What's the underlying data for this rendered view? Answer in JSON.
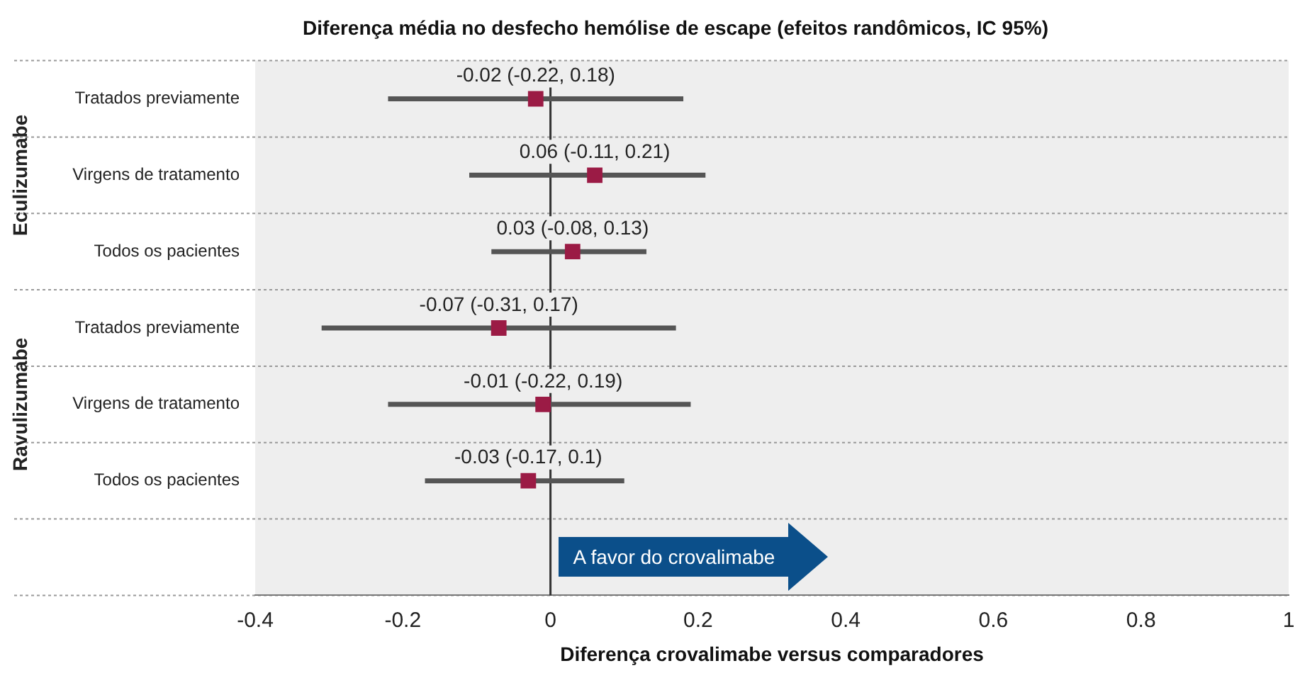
{
  "chart_data": {
    "type": "scatter",
    "orientation": "horizontal",
    "title": "Diferença média no desfecho hemólise de escape (efeitos randômicos, IC 95%)",
    "xlabel": "Diferença crovalimabe versus comparadores",
    "categories": [
      "Tratados previamente",
      "Virgens de tratamento",
      "Todos os pacientes",
      "Tratados previamente",
      "Virgens de tratamento",
      "Todos os pacientes",
      null
    ],
    "values": [
      -0.02,
      0.06,
      0.03,
      -0.07,
      -0.01,
      -0.03,
      null
    ],
    "errors": [
      [
        -0.22,
        0.18
      ],
      [
        -0.11,
        0.21
      ],
      [
        -0.08,
        0.13
      ],
      [
        -0.31,
        0.17
      ],
      [
        -0.22,
        0.19
      ],
      [
        -0.17,
        0.1
      ],
      null
    ],
    "value_labels": [
      "-0.02 (-0.22, 0.18)",
      "0.06 (-0.11, 0.21)",
      "0.03 (-0.08, 0.13)",
      "-0.07 (-0.31, 0.17)",
      "-0.01 (-0.22, 0.19)",
      "-0.03 (-0.17, 0.1)",
      null
    ],
    "color": "#9b1b45",
    "marker": "square",
    "grid": "y",
    "xlim": [
      -0.4,
      1
    ],
    "xticks": [
      -0.4,
      -0.2,
      0,
      0.2,
      0.4,
      0.6,
      0.8,
      1
    ],
    "ref_lines": [
      {
        "axis": "x",
        "value": 0,
        "color": "#333333"
      }
    ],
    "annotations": [
      "Eculizumabe",
      "Ravulizumabe",
      {
        "text": "A favor do crovalimabe",
        "x": 0
      }
    ]
  }
}
